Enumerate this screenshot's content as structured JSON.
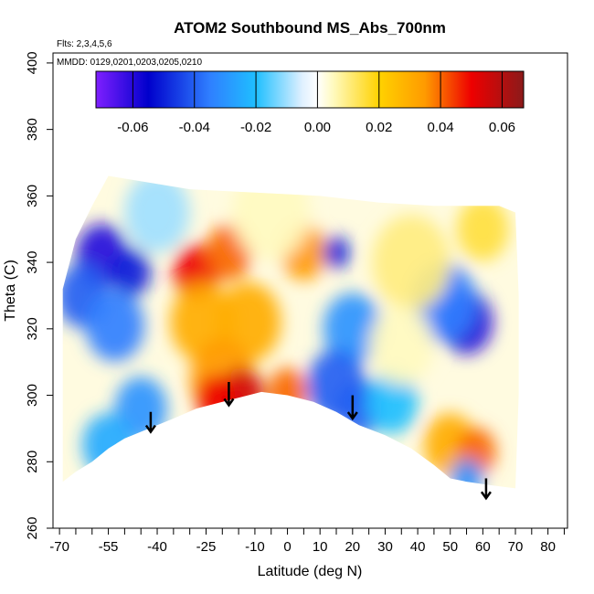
{
  "chart_data": {
    "type": "heatmap",
    "title": "ATOM2 Southbound MS_Abs_700nm",
    "subtitle_lines": [
      "Flts: 2,3,4,5,6",
      "MMDD: 0129,0201,0203,0205,0210"
    ],
    "xlabel": "Latitude (deg N)",
    "ylabel": "Theta (C)",
    "xlim": [
      -72,
      86
    ],
    "ylim": [
      260,
      403
    ],
    "x_ticks_major": [
      -70,
      -55,
      -40,
      -25,
      -10,
      0,
      10,
      20,
      30,
      40,
      50,
      60,
      70,
      80
    ],
    "x_ticks_minor": [
      -65,
      -60,
      -50,
      -45,
      -35,
      -30,
      -20,
      -15,
      -5,
      5,
      15,
      25,
      35,
      45,
      55,
      65,
      75,
      85
    ],
    "y_ticks": [
      260,
      280,
      300,
      320,
      340,
      360,
      380,
      400
    ],
    "colorbar": {
      "range": [
        -0.072,
        0.067
      ],
      "ticks": [
        -0.06,
        -0.04,
        -0.02,
        0.0,
        0.02,
        0.04,
        0.06
      ],
      "tick_labels": [
        "-0.06",
        "-0.04",
        "-0.02",
        "0.00",
        "0.02",
        "0.04",
        "0.06"
      ],
      "colors": [
        {
          "v": -0.072,
          "c": "#7f1fff"
        },
        {
          "v": -0.055,
          "c": "#0000cc"
        },
        {
          "v": -0.035,
          "c": "#2f7fff"
        },
        {
          "v": -0.02,
          "c": "#1fbfff"
        },
        {
          "v": -0.005,
          "c": "#dff0ff"
        },
        {
          "v": 0.0,
          "c": "#ffffff"
        },
        {
          "v": 0.005,
          "c": "#fffac0"
        },
        {
          "v": 0.02,
          "c": "#ffd200"
        },
        {
          "v": 0.035,
          "c": "#ff9a00"
        },
        {
          "v": 0.05,
          "c": "#ee0000"
        },
        {
          "v": 0.067,
          "c": "#8b1a1a"
        }
      ]
    },
    "data_boundary": [
      [
        -69,
        274
      ],
      [
        -65,
        277
      ],
      [
        -60,
        280
      ],
      [
        -55,
        284
      ],
      [
        -50,
        287
      ],
      [
        -45,
        289
      ],
      [
        -40,
        291
      ],
      [
        -35,
        293
      ],
      [
        -28,
        296
      ],
      [
        -20,
        298
      ],
      [
        -12,
        300
      ],
      [
        -8,
        301
      ],
      [
        0,
        300
      ],
      [
        8,
        298
      ],
      [
        15,
        295
      ],
      [
        22,
        291
      ],
      [
        30,
        288
      ],
      [
        38,
        284
      ],
      [
        45,
        279
      ],
      [
        50,
        275
      ],
      [
        55,
        274
      ],
      [
        62,
        273
      ],
      [
        70,
        272
      ],
      [
        71,
        300
      ],
      [
        71,
        330
      ],
      [
        70,
        355
      ],
      [
        65,
        357
      ],
      [
        45,
        357
      ],
      [
        28,
        358
      ],
      [
        10,
        360
      ],
      [
        -30,
        362
      ],
      [
        -55,
        366
      ],
      [
        -60,
        357
      ],
      [
        -65,
        347
      ],
      [
        -69,
        332
      ],
      [
        -69,
        300
      ]
    ],
    "anomalies": [
      {
        "lat": -57,
        "theta": 342,
        "value": -0.06,
        "size": 8
      },
      {
        "lat": -63,
        "theta": 330,
        "value": -0.04,
        "size": 8
      },
      {
        "lat": -48,
        "theta": 337,
        "value": -0.05,
        "size": 6
      },
      {
        "lat": -53,
        "theta": 321,
        "value": -0.035,
        "size": 9
      },
      {
        "lat": -45,
        "theta": 296,
        "value": -0.03,
        "size": 8
      },
      {
        "lat": -55,
        "theta": 285,
        "value": -0.025,
        "size": 8
      },
      {
        "lat": -28,
        "theta": 337,
        "value": 0.05,
        "size": 7
      },
      {
        "lat": -18,
        "theta": 343,
        "value": 0.04,
        "size": 7
      },
      {
        "lat": -26,
        "theta": 322,
        "value": 0.03,
        "size": 10
      },
      {
        "lat": -12,
        "theta": 322,
        "value": 0.03,
        "size": 10
      },
      {
        "lat": -20,
        "theta": 305,
        "value": 0.035,
        "size": 10
      },
      {
        "lat": -14,
        "theta": 300,
        "value": 0.055,
        "size": 7
      },
      {
        "lat": -22,
        "theta": 299,
        "value": 0.05,
        "size": 6
      },
      {
        "lat": 0,
        "theta": 301,
        "value": 0.04,
        "size": 6
      },
      {
        "lat": 5,
        "theta": 343,
        "value": 0.035,
        "size": 7
      },
      {
        "lat": 15,
        "theta": 343,
        "value": -0.05,
        "size": 4
      },
      {
        "lat": 20,
        "theta": 320,
        "value": -0.03,
        "size": 9
      },
      {
        "lat": 15,
        "theta": 303,
        "value": -0.04,
        "size": 9
      },
      {
        "lat": 22,
        "theta": 296,
        "value": -0.04,
        "size": 7
      },
      {
        "lat": 32,
        "theta": 298,
        "value": -0.02,
        "size": 8
      },
      {
        "lat": 55,
        "theta": 322,
        "value": -0.06,
        "size": 8
      },
      {
        "lat": 48,
        "theta": 328,
        "value": -0.035,
        "size": 10
      },
      {
        "lat": 50,
        "theta": 285,
        "value": 0.03,
        "size": 8
      },
      {
        "lat": 58,
        "theta": 283,
        "value": 0.04,
        "size": 6
      },
      {
        "lat": 55,
        "theta": 275,
        "value": -0.03,
        "size": 5
      },
      {
        "lat": 38,
        "theta": 340,
        "value": 0.01,
        "size": 12
      },
      {
        "lat": 60,
        "theta": 350,
        "value": 0.015,
        "size": 8
      },
      {
        "lat": -5,
        "theta": 355,
        "value": 0.005,
        "size": 12
      },
      {
        "lat": -40,
        "theta": 355,
        "value": -0.01,
        "size": 10
      },
      {
        "lat": 35,
        "theta": 315,
        "value": 0.005,
        "size": 10
      }
    ],
    "arrows": [
      {
        "lat": -42,
        "theta_top": 295,
        "theta_bottom": 289
      },
      {
        "lat": -18,
        "theta_top": 304,
        "theta_bottom": 297
      },
      {
        "lat": 20,
        "theta_top": 300,
        "theta_bottom": 293
      },
      {
        "lat": 61,
        "theta_top": 275,
        "theta_bottom": 269
      }
    ]
  }
}
